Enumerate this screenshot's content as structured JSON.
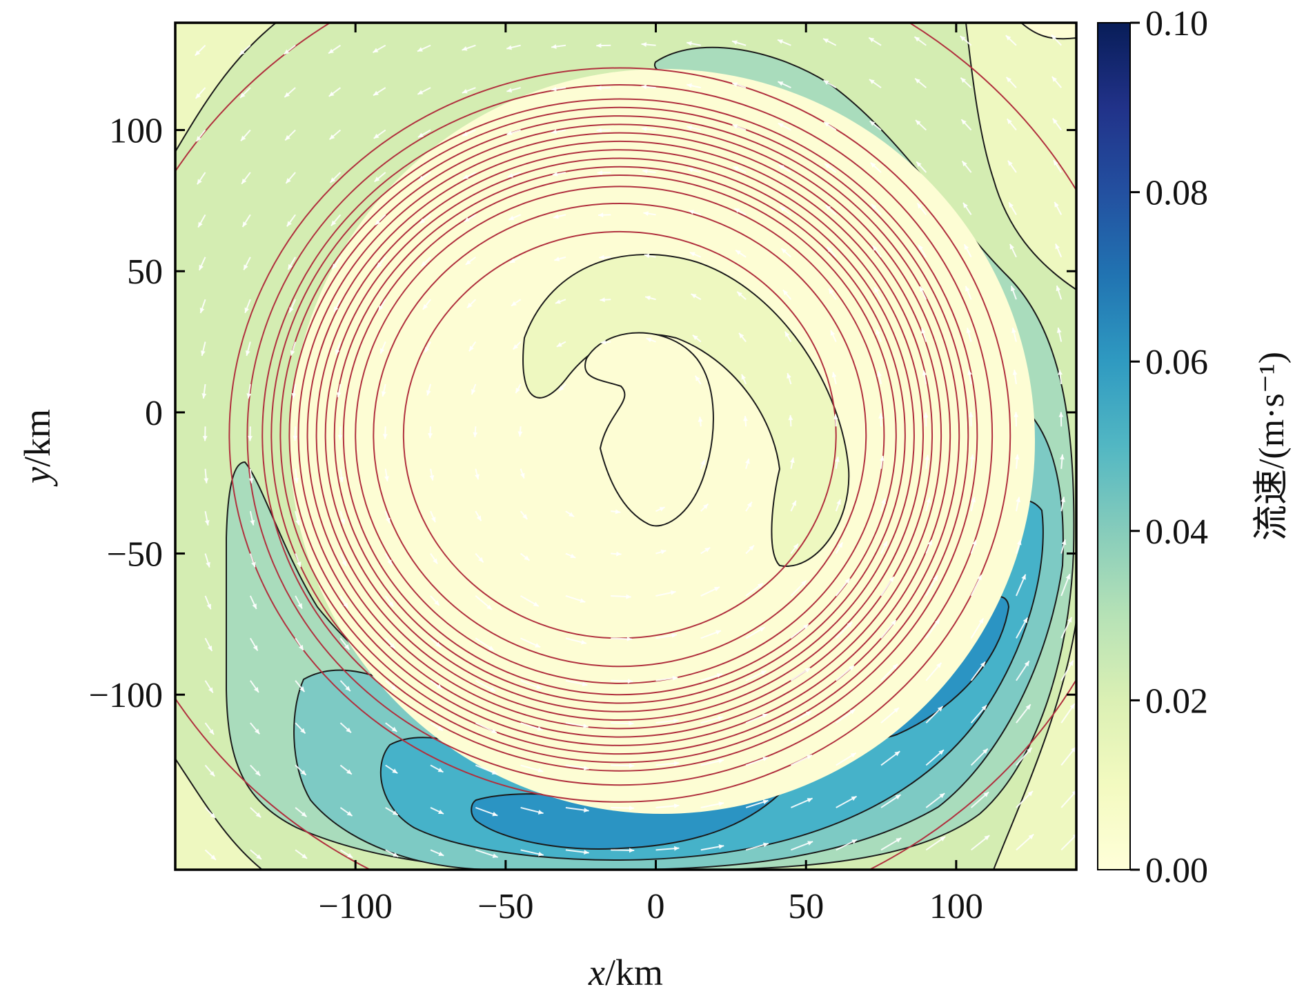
{
  "chart_data": {
    "type": "heatmap",
    "subtype": "filled-contour with streamline circles and velocity arrows",
    "xlabel_var": "x",
    "xlabel_unit": "/km",
    "ylabel_var": "y",
    "ylabel_unit": "/km",
    "xlim": [
      -160,
      140
    ],
    "ylim": [
      -162,
      138
    ],
    "x_ticks": [
      -100,
      -50,
      0,
      50,
      100
    ],
    "y_ticks": [
      100,
      50,
      0,
      -50,
      -100
    ],
    "x_tick_labels": [
      "−100",
      "−50",
      "0",
      "50",
      "100"
    ],
    "y_tick_labels": [
      "100",
      "50",
      "0",
      "−50",
      "−100"
    ],
    "colorbar": {
      "label": "流速/(m·s⁻¹)",
      "range": [
        0.0,
        0.1
      ],
      "ticks": [
        0.0,
        0.02,
        0.04,
        0.06,
        0.08,
        0.1
      ],
      "tick_labels": [
        "0.00",
        "0.02",
        "0.04",
        "0.06",
        "0.08",
        "0.10"
      ],
      "colormap": "YlGnBu"
    },
    "levels": [
      0.0,
      0.01,
      0.02,
      0.03,
      0.04,
      0.05,
      0.06,
      0.07
    ],
    "level_colors": [
      "#fdfdd4",
      "#eef8c0",
      "#d4edb2",
      "#a9dcbc",
      "#7dcac4",
      "#46b2c9",
      "#2b94c3",
      "#1f6fb0"
    ],
    "vortex_center_km": [
      -12,
      -8
    ],
    "streamline_radii_km": [
      72,
      82,
      88,
      92,
      95,
      98,
      101,
      104,
      107,
      110,
      113,
      116,
      119,
      124,
      130,
      175
    ],
    "contour_style": {
      "line": "#1a1a1a",
      "streamline": "#b0303e",
      "arrow": "#ffffff"
    },
    "grid": false,
    "legend": "none"
  }
}
